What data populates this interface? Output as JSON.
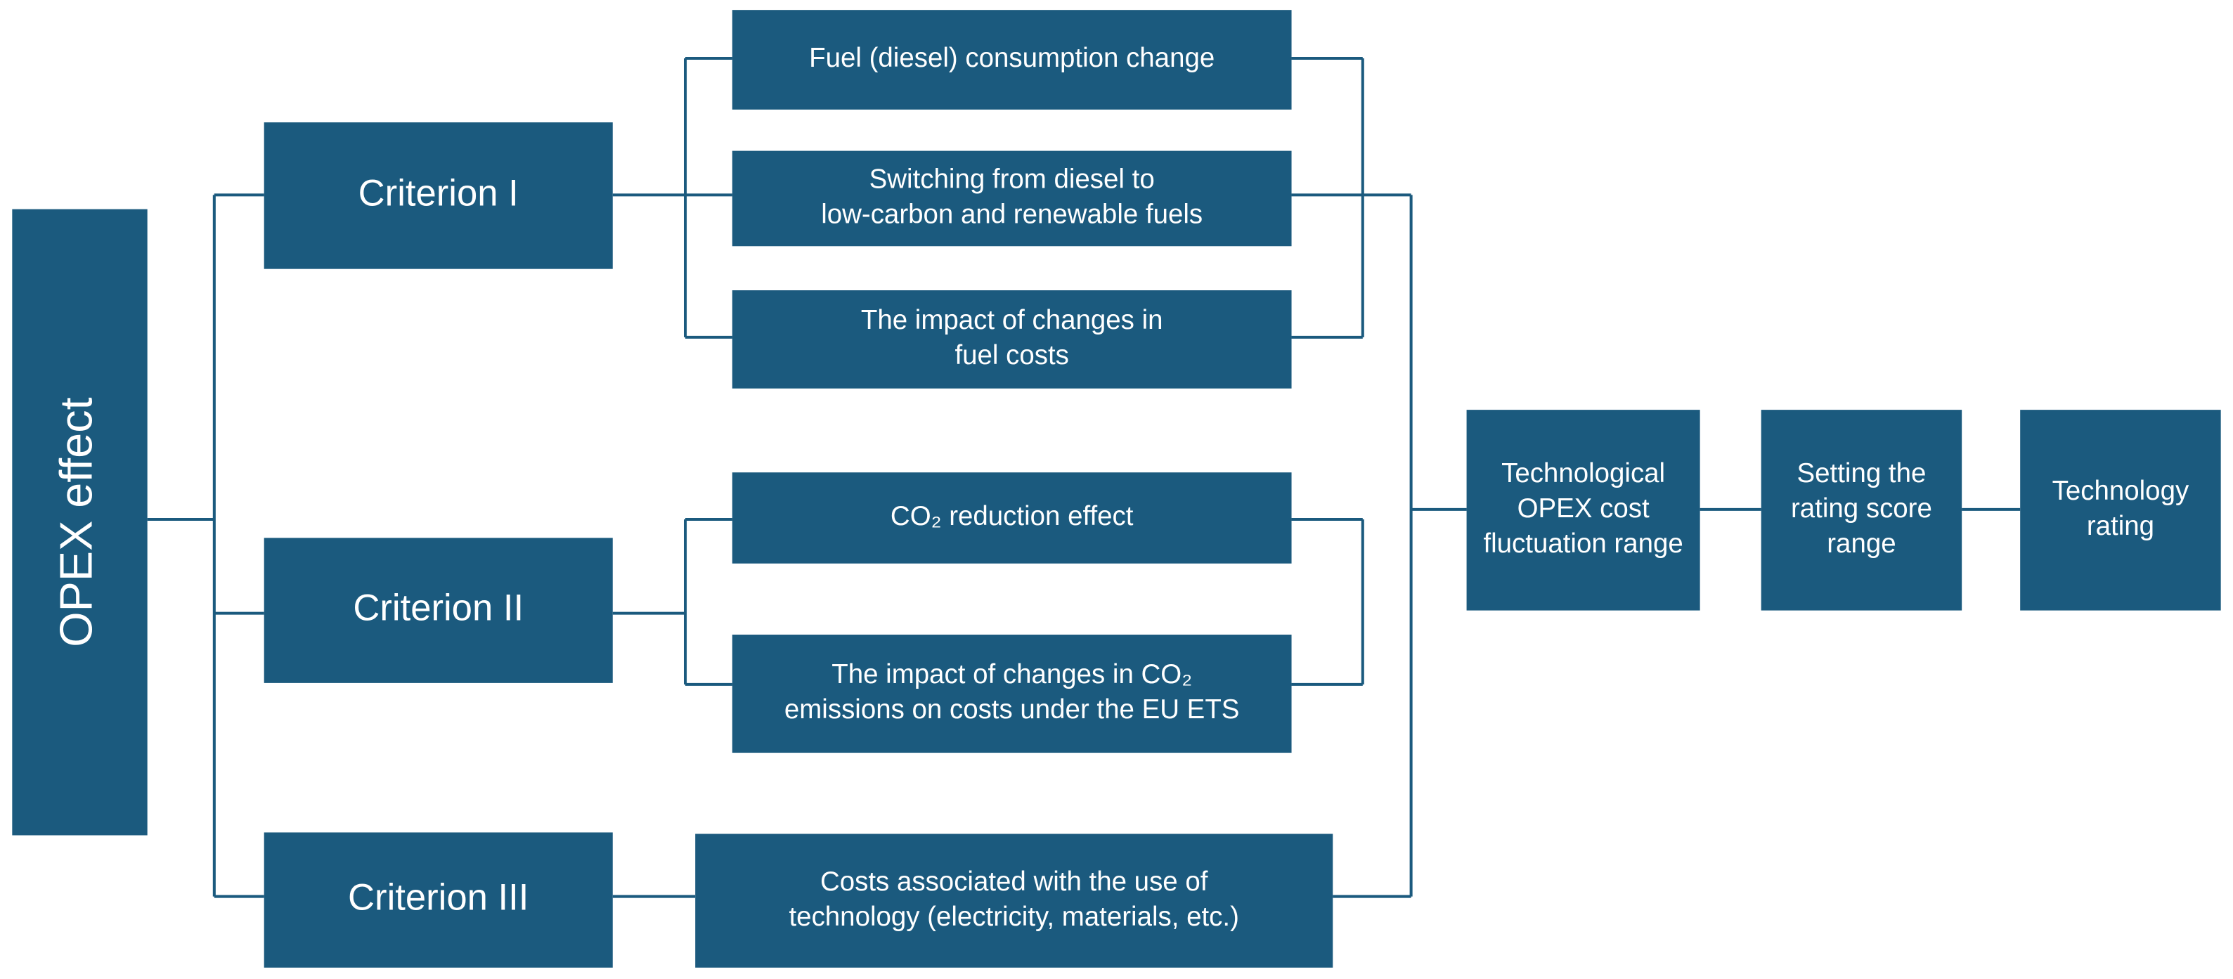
{
  "nodes": [
    {
      "lines": [
        "OPEX effect"
      ]
    },
    {
      "lines": [
        "Criterion I"
      ]
    },
    {
      "lines": [
        "Criterion II"
      ]
    },
    {
      "lines": [
        "Criterion III"
      ]
    },
    {
      "lines": [
        "Fuel (diesel) consumption change"
      ]
    },
    {
      "lines": [
        "Switching from diesel to",
        "low-carbon and renewable fuels"
      ]
    },
    {
      "lines": [
        "The impact of changes in",
        "fuel costs"
      ]
    },
    {
      "lines": [
        "CO₂ reduction effect"
      ]
    },
    {
      "lines": [
        "The impact of changes in CO₂",
        "emissions on costs under the EU ETS"
      ]
    },
    {
      "lines": [
        "Costs associated with the use of",
        "technology (electricity, materials, etc.)"
      ]
    },
    {
      "lines": [
        "Technological",
        "OPEX cost",
        "fluctuation range"
      ]
    },
    {
      "lines": [
        "Setting the",
        "rating score",
        "range"
      ]
    },
    {
      "lines": [
        "Technology",
        "rating"
      ]
    }
  ]
}
